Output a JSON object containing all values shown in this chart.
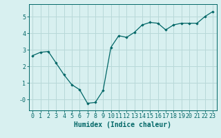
{
  "x": [
    0,
    1,
    2,
    3,
    4,
    5,
    6,
    7,
    8,
    9,
    10,
    11,
    12,
    13,
    14,
    15,
    16,
    17,
    18,
    19,
    20,
    21,
    22,
    23
  ],
  "y": [
    2.65,
    2.85,
    2.9,
    2.2,
    1.5,
    0.9,
    0.6,
    -0.22,
    -0.17,
    0.55,
    3.15,
    3.85,
    3.75,
    4.05,
    4.5,
    4.65,
    4.6,
    4.2,
    4.5,
    4.6,
    4.6,
    4.6,
    5.0,
    5.3
  ],
  "line_color": "#006666",
  "marker": "D",
  "marker_size": 1.8,
  "background_color": "#d8f0f0",
  "grid_color": "#b8d8d8",
  "xlabel": "Humidex (Indice chaleur)",
  "xlim": [
    -0.5,
    23.5
  ],
  "ylim": [
    -0.65,
    5.75
  ],
  "yticks": [
    0,
    1,
    2,
    3,
    4,
    5
  ],
  "ytick_labels": [
    "-0",
    "1",
    "2",
    "3",
    "4",
    "5"
  ],
  "xticks": [
    0,
    1,
    2,
    3,
    4,
    5,
    6,
    7,
    8,
    9,
    10,
    11,
    12,
    13,
    14,
    15,
    16,
    17,
    18,
    19,
    20,
    21,
    22,
    23
  ],
  "tick_color": "#006666",
  "label_color": "#006666",
  "font_size": 6,
  "xlabel_fontsize": 7
}
